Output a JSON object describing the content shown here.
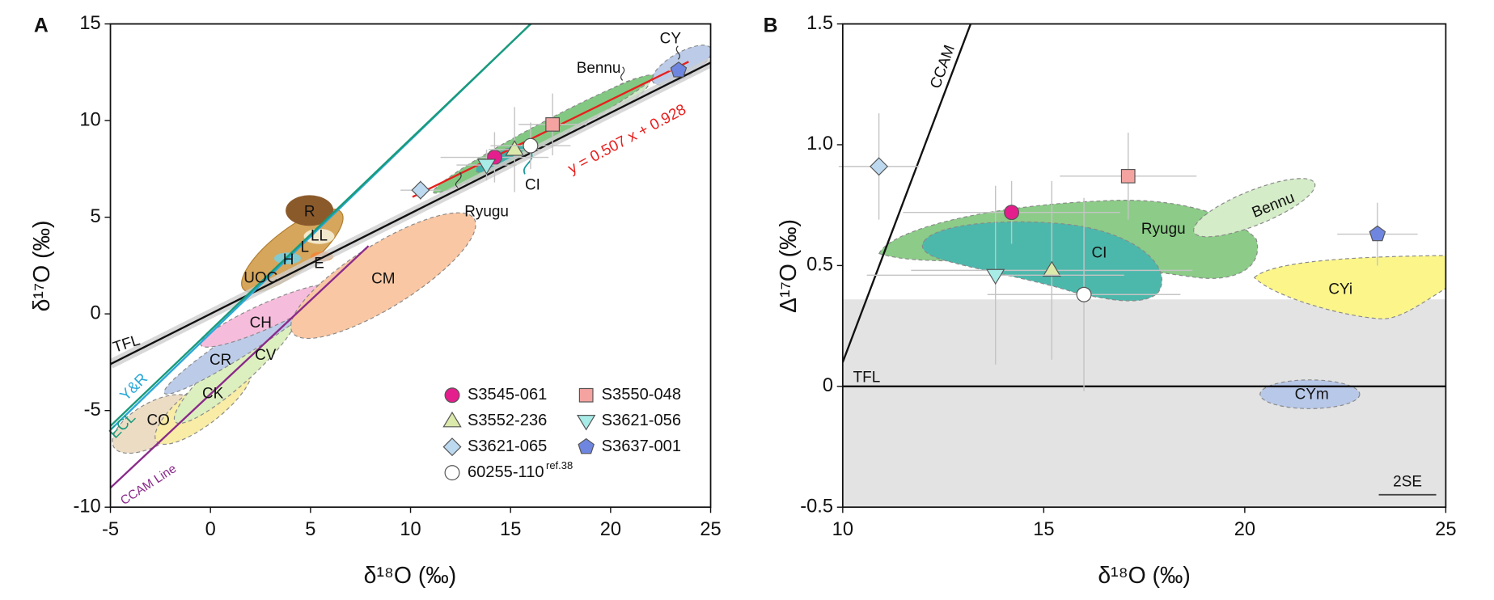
{
  "chart_data": [
    {
      "type": "scatter",
      "panel_label": "A",
      "xlabel": "δ¹⁸O (‰)",
      "ylabel": "δ¹⁷O (‰)",
      "xlim": [
        -5,
        25
      ],
      "ylim": [
        -10,
        15
      ],
      "xticks": [
        -5,
        0,
        5,
        10,
        15,
        20,
        25
      ],
      "yticks": [
        -10,
        -5,
        0,
        5,
        10,
        15
      ],
      "legend": "lower right",
      "series": [
        {
          "name": "S3545-061",
          "color": "#e41e8c",
          "marker": "circle",
          "x": [
            14.2
          ],
          "values": [
            8.1
          ],
          "xerr": [
            2.7
          ],
          "yerr": [
            1.3
          ]
        },
        {
          "name": "S3550-048",
          "color": "#f4a3a0",
          "marker": "square",
          "x": [
            17.1
          ],
          "values": [
            9.8
          ],
          "xerr": [
            1.7
          ],
          "yerr": [
            1.6
          ]
        },
        {
          "name": "S3552-236",
          "color": "#dbe9ab",
          "marker": "triangle",
          "x": [
            15.2
          ],
          "values": [
            8.5
          ],
          "xerr": [
            1.3
          ],
          "yerr": [
            2.2
          ]
        },
        {
          "name": "S3621-056",
          "color": "#a8ece8",
          "marker": "triangle-down",
          "x": [
            13.8
          ],
          "values": [
            7.7
          ],
          "xerr": [
            1.5
          ],
          "yerr": [
            0.8
          ]
        },
        {
          "name": "S3621-065",
          "color": "#bcd9f0",
          "marker": "diamond",
          "x": [
            10.5
          ],
          "values": [
            6.4
          ],
          "xerr": [
            1.0
          ],
          "yerr": [
            0.5
          ]
        },
        {
          "name": "S3637-001",
          "color": "#6f86e0",
          "marker": "pentagon",
          "x": [
            23.4
          ],
          "values": [
            12.6
          ],
          "xerr": [
            0.5
          ],
          "yerr": [
            0.3
          ]
        },
        {
          "name": "60255-110",
          "name_note": "ref.38",
          "color": "#ffffff",
          "marker": "circle",
          "x": [
            16.0
          ],
          "values": [
            8.7
          ],
          "xerr": [
            2.0
          ],
          "yerr": [
            1.2
          ]
        }
      ],
      "lines": [
        {
          "name": "TFL",
          "color": "#111111",
          "slope": 0.52,
          "intercept": 0,
          "xrange": [
            -5,
            25
          ],
          "band": true
        },
        {
          "name": "Y&R",
          "color": "#2aa8d8",
          "slope": 1.0,
          "intercept": -1.0,
          "xrange": [
            -5,
            16.2
          ]
        },
        {
          "name": "ECL",
          "color": "#1a9a7a",
          "slope": 0.99,
          "intercept": -0.85,
          "xrange": [
            -5,
            16.1
          ]
        },
        {
          "name": "CCAM Line",
          "color": "#8a2a8a",
          "slope": 0.97,
          "intercept": -4.15,
          "xrange": [
            -5,
            7.9
          ]
        },
        {
          "name": "y = 0.507 x + 0.928",
          "color": "#e8201e",
          "slope": 0.507,
          "intercept": 0.928,
          "xrange": [
            10.1,
            23.9
          ]
        }
      ],
      "region_labels": [
        "R",
        "UOC",
        "H",
        "L",
        "LL",
        "E",
        "CM",
        "CH",
        "CR",
        "CV",
        "CK",
        "CO",
        "Ryugu",
        "CI",
        "Bennu",
        "CY"
      ]
    },
    {
      "type": "scatter",
      "panel_label": "B",
      "xlabel": "δ¹⁸O (‰)",
      "ylabel": "Δ¹⁷O (‰)",
      "xlim": [
        10,
        25
      ],
      "ylim": [
        -0.5,
        1.5
      ],
      "xticks": [
        10,
        15,
        20,
        25
      ],
      "yticks": [
        -0.5,
        0,
        0.5,
        {
          "value": 1,
          "label": "1.0"
        },
        1.5
      ],
      "legend": false,
      "shade": [
        -0.5,
        0.36
      ],
      "series": [
        {
          "color": "#e41e8c",
          "marker": "circle",
          "x": [
            14.2
          ],
          "values": [
            0.72
          ],
          "xerr": [
            2.7
          ],
          "yerr": [
            0.13
          ]
        },
        {
          "color": "#f4a3a0",
          "marker": "square",
          "x": [
            17.1
          ],
          "values": [
            0.87
          ],
          "xerr": [
            1.7
          ],
          "yerr": [
            0.18
          ]
        },
        {
          "color": "#dbe9ab",
          "marker": "triangle",
          "x": [
            15.2
          ],
          "values": [
            0.48
          ],
          "xerr": [
            3.5
          ],
          "yerr": [
            0.37
          ]
        },
        {
          "color": "#a8ece8",
          "marker": "triangle-down",
          "x": [
            13.8
          ],
          "values": [
            0.46
          ],
          "xerr": [
            3.2
          ],
          "yerr": [
            0.37
          ]
        },
        {
          "color": "#bcd9f0",
          "marker": "diamond",
          "x": [
            10.9
          ],
          "values": [
            0.91
          ],
          "xerr": [
            1.0
          ],
          "yerr": [
            0.22
          ]
        },
        {
          "color": "#6f86e0",
          "marker": "pentagon",
          "x": [
            23.3
          ],
          "values": [
            0.63
          ],
          "xerr": [
            1.0
          ],
          "yerr": [
            0.13
          ]
        },
        {
          "color": "#ffffff",
          "marker": "circle",
          "x": [
            16.0
          ],
          "values": [
            0.38
          ],
          "xerr": [
            2.4
          ],
          "yerr": [
            0.4
          ]
        }
      ],
      "lines": [
        {
          "name": "TFL",
          "color": "#111111",
          "slope": 0,
          "intercept": 0,
          "xrange": [
            10,
            25
          ]
        },
        {
          "name": "CCAM",
          "color": "#111111",
          "slope": 0.44,
          "intercept": -4.3,
          "xrange": [
            10,
            13.2
          ]
        }
      ],
      "region_labels": [
        "Ryugu",
        "Bennu",
        "CI",
        "CYi",
        "CYm"
      ],
      "scale_bar_label": "2SE"
    }
  ]
}
